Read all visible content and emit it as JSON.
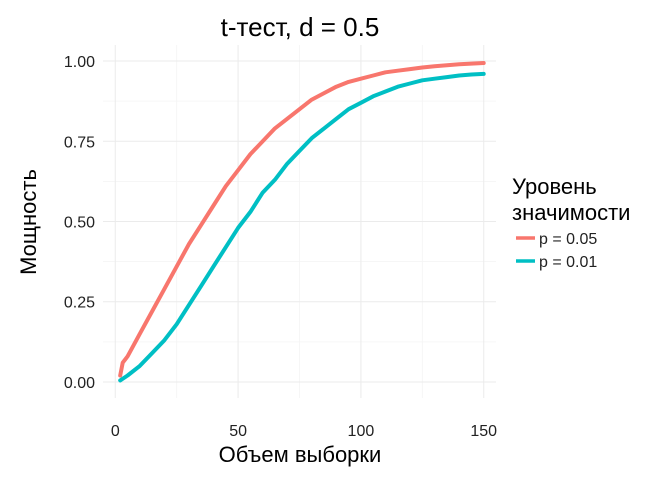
{
  "chart_data": {
    "type": "line",
    "title": "t-тест, d = 0.5",
    "xlabel": "Объем выборки",
    "ylabel": "Мощность",
    "xlim": [
      -5,
      155
    ],
    "ylim": [
      -0.05,
      1.05
    ],
    "x_ticks": [
      0,
      50,
      100,
      150
    ],
    "y_ticks": [
      0.0,
      0.25,
      0.5,
      0.75,
      1.0
    ],
    "x_tick_labels": [
      "0",
      "50",
      "100",
      "150"
    ],
    "y_tick_labels": [
      "0.00",
      "0.25",
      "0.50",
      "0.75",
      "1.00"
    ],
    "grid": true,
    "legend": {
      "position": "right",
      "title_lines": [
        "Уровень",
        "значимости"
      ]
    },
    "series": [
      {
        "name": "p = 0.05",
        "color": "#F8766D",
        "x": [
          2,
          3,
          5,
          10,
          15,
          20,
          25,
          30,
          35,
          40,
          45,
          50,
          55,
          60,
          65,
          70,
          75,
          80,
          85,
          90,
          95,
          100,
          105,
          110,
          115,
          120,
          125,
          130,
          135,
          140,
          145,
          150
        ],
        "y": [
          0.02,
          0.06,
          0.08,
          0.15,
          0.22,
          0.29,
          0.36,
          0.43,
          0.49,
          0.55,
          0.61,
          0.66,
          0.71,
          0.75,
          0.79,
          0.82,
          0.85,
          0.88,
          0.9,
          0.92,
          0.935,
          0.945,
          0.955,
          0.965,
          0.97,
          0.975,
          0.98,
          0.984,
          0.987,
          0.99,
          0.992,
          0.994
        ]
      },
      {
        "name": "p = 0.01",
        "color": "#00BFC4",
        "x": [
          2,
          5,
          10,
          15,
          20,
          25,
          30,
          35,
          40,
          45,
          50,
          55,
          60,
          65,
          70,
          75,
          80,
          85,
          90,
          95,
          100,
          105,
          110,
          115,
          120,
          125,
          130,
          135,
          140,
          145,
          150
        ],
        "y": [
          0.005,
          0.02,
          0.05,
          0.09,
          0.13,
          0.18,
          0.24,
          0.3,
          0.36,
          0.42,
          0.48,
          0.53,
          0.59,
          0.63,
          0.68,
          0.72,
          0.76,
          0.79,
          0.82,
          0.85,
          0.87,
          0.89,
          0.905,
          0.92,
          0.93,
          0.94,
          0.945,
          0.95,
          0.955,
          0.958,
          0.96
        ]
      }
    ]
  }
}
